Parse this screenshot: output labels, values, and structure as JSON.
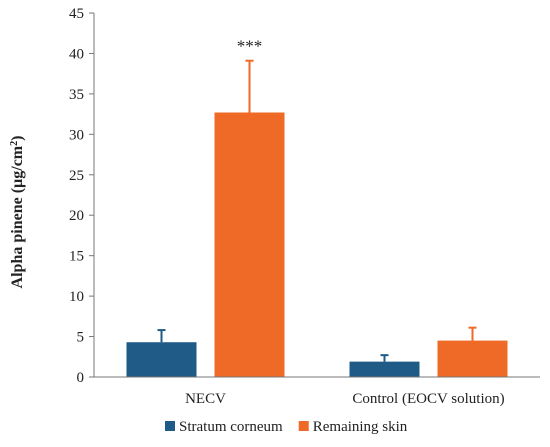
{
  "chart_data": {
    "type": "bar",
    "categories": [
      "NECV",
      "Control (EOCV solution)"
    ],
    "series": [
      {
        "name": "Stratum corneum",
        "values": [
          4.3,
          1.9
        ],
        "errors": [
          1.5,
          0.8
        ],
        "color": "#1f5b86"
      },
      {
        "name": "Remaining skin",
        "values": [
          32.7,
          4.5
        ],
        "errors": [
          6.4,
          1.6
        ],
        "color": "#ef6a26"
      }
    ],
    "ylabel": "Alpha pinene (µg/cm²)",
    "ylabel_main": "Alpha pinene (µg/cm",
    "ylabel_sup": "2",
    "ylabel_end": ")",
    "ylim": [
      0,
      45
    ],
    "yticks": [
      0,
      5,
      10,
      15,
      20,
      25,
      30,
      35,
      40,
      45
    ],
    "annotations": [
      {
        "text": "***",
        "category": 0,
        "series": 1
      }
    ],
    "legend_position": "bottom",
    "grid": false
  }
}
